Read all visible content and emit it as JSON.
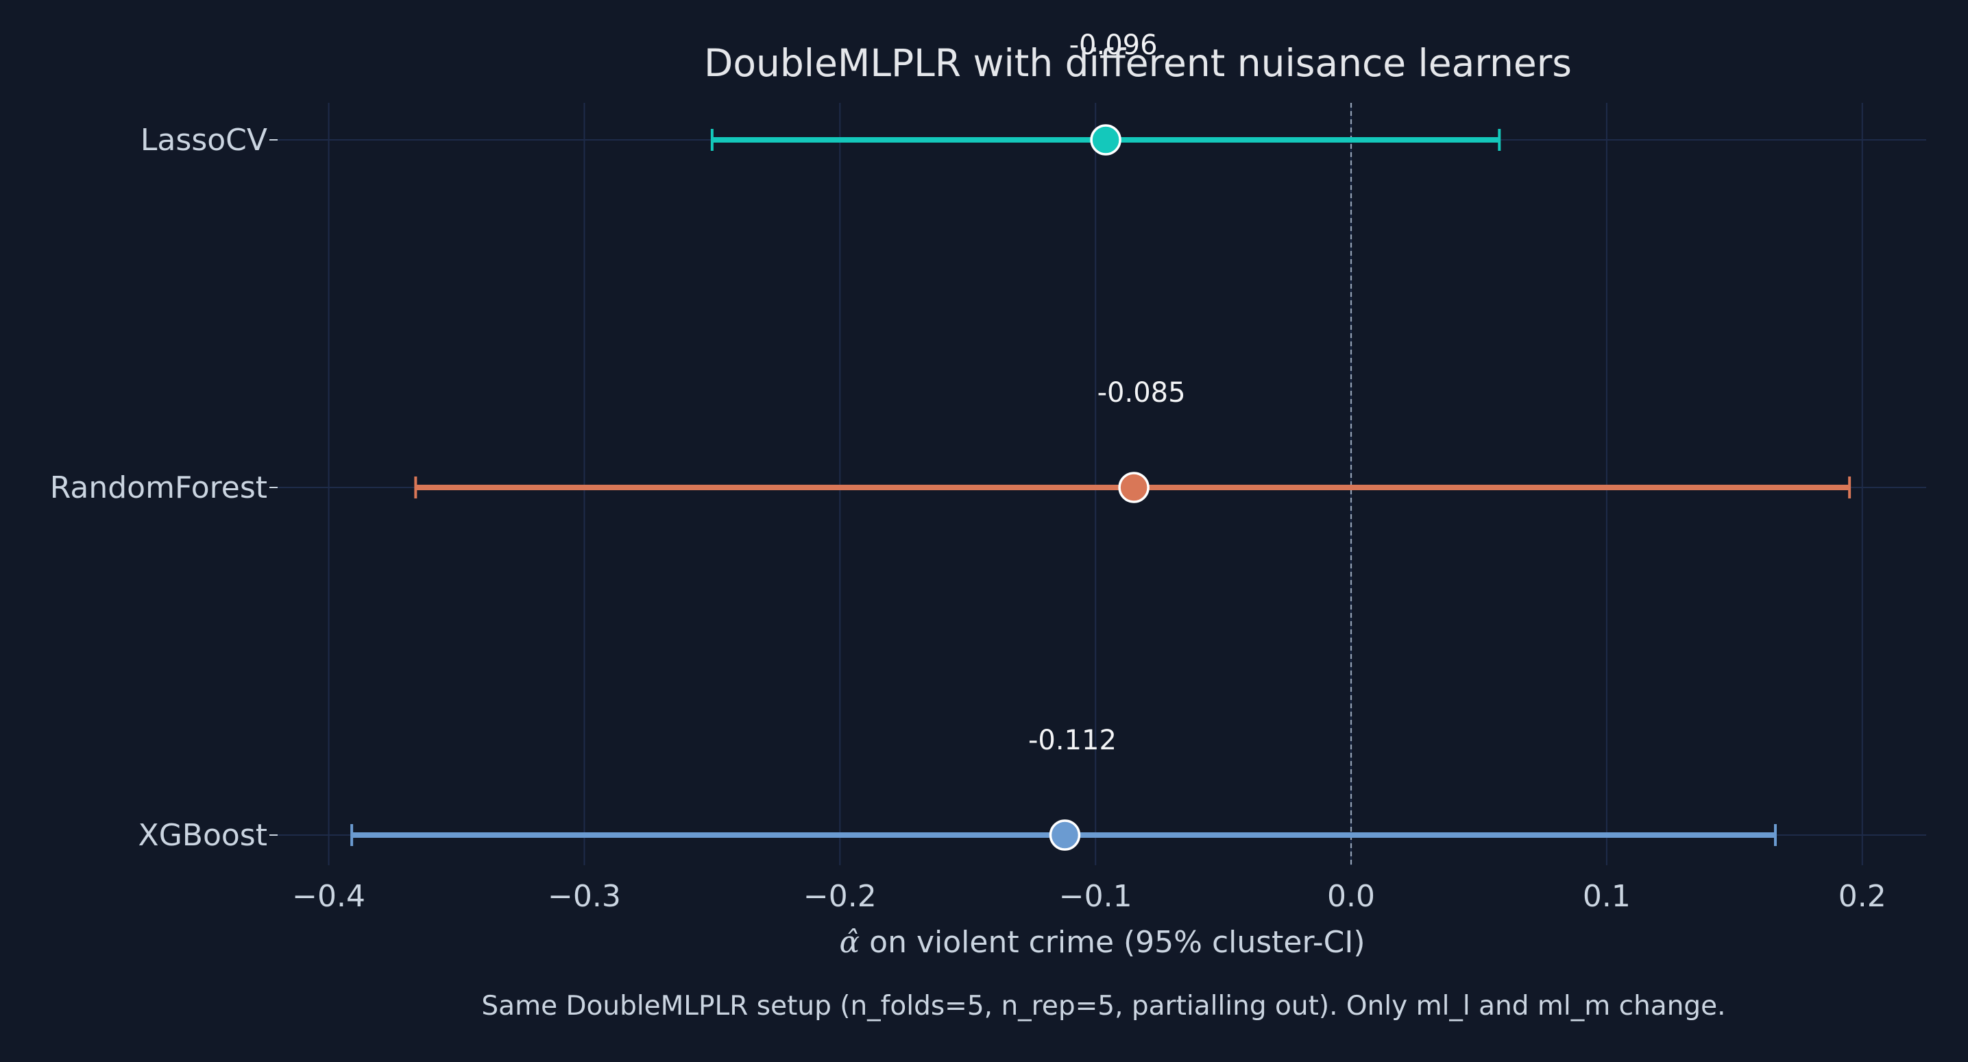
{
  "chart_data": {
    "type": "forest",
    "title": "DoubleMLPLR with different nuisance learners",
    "xlabel": "α̂ on violent crime (95% cluster-CI)",
    "xlabel_parts": {
      "symbol": "α̂",
      "text": " on violent crime (95% cluster-CI)"
    },
    "xlim": [
      -0.42,
      0.225
    ],
    "xticks": [
      -0.4,
      -0.3,
      -0.2,
      -0.1,
      0.0,
      0.1,
      0.2
    ],
    "xtick_labels": [
      "−0.4",
      "−0.3",
      "−0.2",
      "−0.1",
      "0.0",
      "0.1",
      "0.2"
    ],
    "reference_line": 0.0,
    "grid": true,
    "footnote": "Same DoubleMLPLR setup (n_folds=5, n_rep=5, partialling out). Only ml_l and ml_m change.",
    "series": [
      {
        "name": "LassoCV",
        "estimate": -0.096,
        "ci_low": -0.25,
        "ci_high": 0.058,
        "label": "-0.096",
        "color": "#14C8BB"
      },
      {
        "name": "RandomForest",
        "estimate": -0.085,
        "ci_low": -0.366,
        "ci_high": 0.195,
        "label": "-0.085",
        "color": "#D97757"
      },
      {
        "name": "XGBoost",
        "estimate": -0.112,
        "ci_low": -0.391,
        "ci_high": 0.166,
        "label": "-0.112",
        "color": "#6B9BD1"
      }
    ]
  },
  "colors": {
    "background": "#111827",
    "grid": "#1E2B49",
    "reference": "#94A3B8",
    "text": "#CBD5E1"
  }
}
